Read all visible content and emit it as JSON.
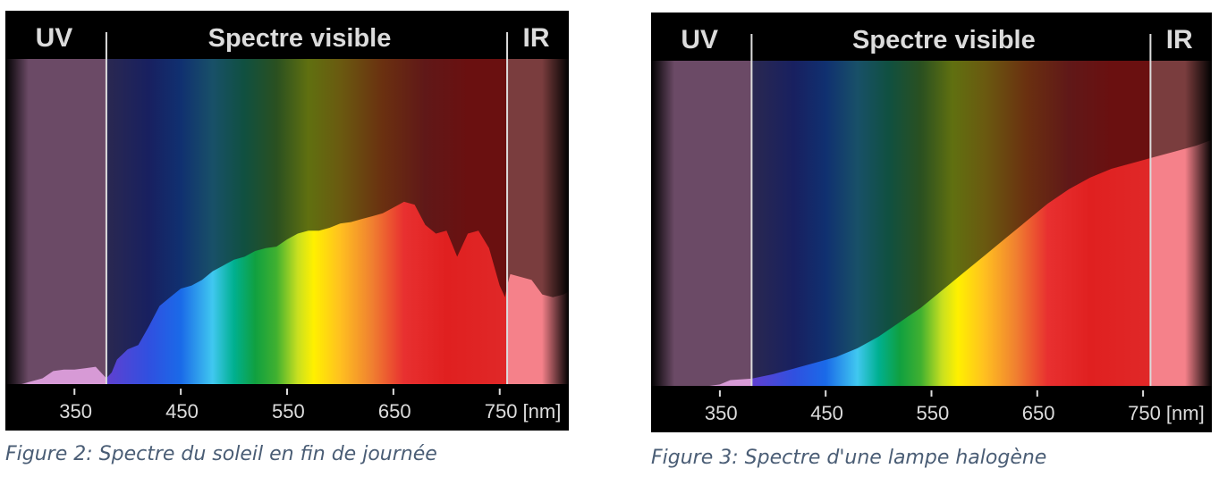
{
  "chart_data": [
    {
      "type": "area",
      "header": {
        "uv": "UV",
        "visible": "Spectre visible",
        "ir": "IR"
      },
      "x_ticks": [
        "350",
        "450",
        "550",
        "650",
        "750 [nm]"
      ],
      "x_tick_values": [
        350,
        450,
        550,
        650,
        750
      ],
      "xlim": [
        285,
        815
      ],
      "ylim": [
        0,
        1
      ],
      "band_edges_nm": {
        "uv_end": 380,
        "ir_start": 757
      },
      "series": [
        {
          "x": [
            285,
            300,
            320,
            330,
            340,
            350,
            360,
            370,
            380,
            385,
            390,
            400,
            410,
            420,
            430,
            440,
            450,
            460,
            470,
            480,
            490,
            500,
            510,
            520,
            530,
            540,
            550,
            560,
            570,
            580,
            590,
            600,
            610,
            620,
            630,
            640,
            650,
            660,
            670,
            680,
            690,
            700,
            710,
            720,
            730,
            740,
            750,
            755,
            757,
            760,
            770,
            780,
            790,
            800,
            810,
            815
          ],
          "y": [
            0.0,
            0.0,
            0.02,
            0.045,
            0.05,
            0.05,
            0.055,
            0.06,
            0.02,
            0.04,
            0.085,
            0.12,
            0.135,
            0.2,
            0.27,
            0.3,
            0.33,
            0.34,
            0.36,
            0.39,
            0.41,
            0.43,
            0.44,
            0.46,
            0.47,
            0.475,
            0.5,
            0.52,
            0.53,
            0.53,
            0.54,
            0.555,
            0.56,
            0.57,
            0.58,
            0.59,
            0.61,
            0.63,
            0.62,
            0.55,
            0.52,
            0.53,
            0.44,
            0.52,
            0.53,
            0.47,
            0.34,
            0.3,
            0.34,
            0.38,
            0.37,
            0.36,
            0.31,
            0.3,
            0.31,
            0.32
          ]
        }
      ]
    },
    {
      "type": "area",
      "header": {
        "uv": "UV",
        "visible": "Spectre visible",
        "ir": "IR"
      },
      "x_ticks": [
        "350",
        "450",
        "550",
        "650",
        "750 [nm]"
      ],
      "x_tick_values": [
        350,
        450,
        550,
        650,
        750
      ],
      "xlim": [
        285,
        815
      ],
      "ylim": [
        0,
        1
      ],
      "band_edges_nm": {
        "uv_end": 380,
        "ir_start": 757
      },
      "series": [
        {
          "x": [
            285,
            300,
            320,
            340,
            350,
            360,
            380,
            400,
            420,
            440,
            460,
            480,
            500,
            520,
            540,
            560,
            580,
            600,
            620,
            640,
            660,
            680,
            700,
            720,
            740,
            760,
            780,
            800,
            815
          ],
          "y": [
            0.0,
            0.0,
            0.0,
            0.0,
            0.005,
            0.02,
            0.025,
            0.04,
            0.06,
            0.08,
            0.1,
            0.13,
            0.17,
            0.22,
            0.27,
            0.33,
            0.39,
            0.45,
            0.51,
            0.57,
            0.63,
            0.68,
            0.72,
            0.75,
            0.77,
            0.79,
            0.81,
            0.83,
            0.85
          ]
        }
      ]
    }
  ],
  "captions": [
    "Figure 2: Spectre du soleil en fin de journée",
    "Figure 3: Spectre d'une lampe halogène"
  ],
  "colors": {
    "background": "#000000",
    "uv_band": "#6b4a66",
    "uv_fill": "#d79ad6",
    "ir_band": "#7a3d3e",
    "ir_fill": "#f5818a",
    "divider": "#dcdcdc",
    "caption": "#4a5d75"
  }
}
